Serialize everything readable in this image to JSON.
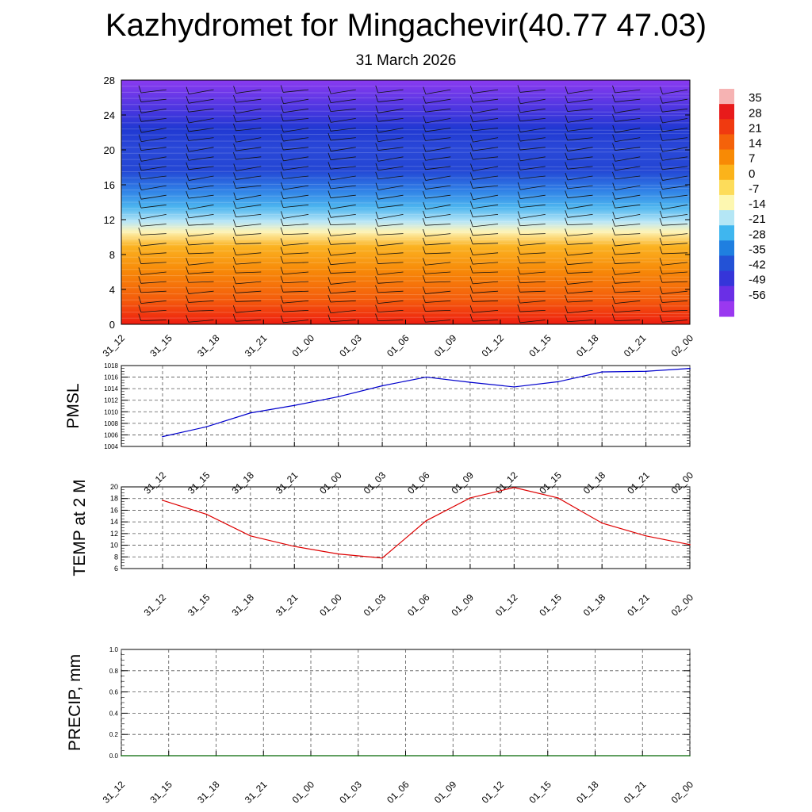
{
  "title": "Kazhydromet for Mingachevir(40.77 47.03)",
  "subtitle": "31 March 2026",
  "x_tick_labels": [
    "31_12",
    "31_15",
    "31_18",
    "31_21",
    "01_00",
    "01_03",
    "01_06",
    "01_09",
    "01_12",
    "01_15",
    "01_18",
    "01_21",
    "02_00"
  ],
  "chart_data": [
    {
      "type": "heatmap",
      "name": "temperature-cross-section",
      "x": [
        "31_12",
        "31_15",
        "31_18",
        "31_21",
        "01_00",
        "01_03",
        "01_06",
        "01_09",
        "01_12",
        "01_15",
        "01_18",
        "01_21",
        "02_00"
      ],
      "y_ticks": [
        0,
        4,
        8,
        12,
        16,
        20,
        24,
        28
      ],
      "ylim": [
        0,
        28
      ],
      "colorbar": {
        "labels": [
          "35",
          "28",
          "21",
          "14",
          "7",
          "0",
          "-7",
          "-14",
          "-21",
          "-28",
          "-35",
          "-42",
          "-49",
          "-56"
        ],
        "colors": [
          "#f6b3b3",
          "#e81b1b",
          "#f03a10",
          "#f4620a",
          "#f88a05",
          "#fbb31a",
          "#fddc5a",
          "#fdf7b0",
          "#b4e6f5",
          "#3fb6ef",
          "#1f7fe0",
          "#2352d6",
          "#3535d9",
          "#6a2fe6",
          "#9a38f0"
        ]
      },
      "wind_barbs": true
    },
    {
      "type": "line",
      "name": "pmsl",
      "ylabel": "PMSL",
      "x": [
        "31_12",
        "31_15",
        "31_18",
        "31_21",
        "01_00",
        "01_03",
        "01_06",
        "01_09",
        "01_12",
        "01_15",
        "01_18",
        "01_21",
        "02_00"
      ],
      "values": [
        1005.7,
        1007.4,
        1009.8,
        1011.1,
        1012.6,
        1014.5,
        1016.0,
        1015.1,
        1014.3,
        1015.2,
        1016.9,
        1017.0,
        1017.5
      ],
      "y_ticks": [
        "1004",
        "1006",
        "1008",
        "1010",
        "1012",
        "1014",
        "1016",
        "1018"
      ],
      "ylim": [
        1004,
        1018
      ],
      "color": "#0000cc",
      "grid": true
    },
    {
      "type": "line",
      "name": "temp-2m",
      "ylabel": "TEMP at 2 M",
      "x": [
        "31_12",
        "31_15",
        "31_18",
        "31_21",
        "01_00",
        "01_03",
        "01_06",
        "01_09",
        "01_12",
        "01_15",
        "01_18",
        "01_21",
        "02_00"
      ],
      "values": [
        17.7,
        15.3,
        11.6,
        9.8,
        8.5,
        7.8,
        14.2,
        18.1,
        19.9,
        18.1,
        13.8,
        11.6,
        10.1
      ],
      "y_ticks": [
        "6",
        "8",
        "10",
        "12",
        "14",
        "16",
        "18",
        "20"
      ],
      "ylim": [
        6,
        20
      ],
      "color": "#dd0000",
      "grid": true
    },
    {
      "type": "line",
      "name": "precip",
      "ylabel": "PRECIP, mm",
      "x": [
        "31_12",
        "31_15",
        "31_18",
        "31_21",
        "01_00",
        "01_03",
        "01_06",
        "01_09",
        "01_12",
        "01_15",
        "01_18",
        "01_21",
        "02_00"
      ],
      "values": [
        0,
        0,
        0,
        0,
        0,
        0,
        0,
        0,
        0,
        0,
        0,
        0,
        0
      ],
      "y_ticks": [
        "0.0",
        "0.2",
        "0.4",
        "0.6",
        "0.8",
        "1.0"
      ],
      "ylim": [
        0,
        1
      ],
      "color": "#006600",
      "grid": true
    }
  ]
}
